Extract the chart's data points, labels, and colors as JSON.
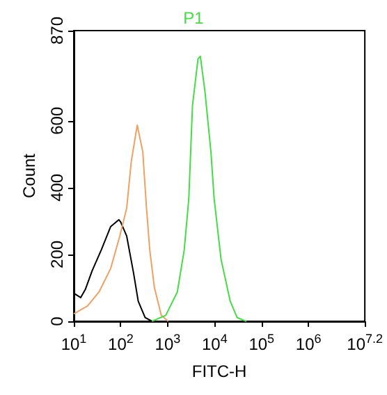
{
  "chart_data": {
    "type": "line",
    "title": "P1",
    "xlabel": "FITC-H",
    "ylabel": "Count",
    "log": "x",
    "grid": false,
    "marker": "none",
    "line_style": "solid",
    "xlim": [
      10,
      15848932
    ],
    "xticks": [
      {
        "value": 10,
        "label": "10$^{1}$"
      },
      {
        "value": 100,
        "label": "10$^{2}$"
      },
      {
        "value": 1000,
        "label": "10$^{3}$"
      },
      {
        "value": 10000,
        "label": "10$^{4}$"
      },
      {
        "value": 100000,
        "label": "10$^{5}$"
      },
      {
        "value": 1000000,
        "label": "10$^{6}$"
      },
      {
        "value": 15848932,
        "label": "10$^{7.2}$"
      }
    ],
    "ylim": [
      0,
      870
    ],
    "yticks": [
      0,
      200,
      400,
      600,
      870
    ],
    "series": [
      {
        "color": "#000000",
        "x": [
          10,
          14,
          17.6,
          24.6,
          38.7,
          60.8,
          91,
          100,
          134,
          188,
          236,
          331,
          464
        ],
        "values": [
          84,
          71,
          95,
          151,
          214,
          283,
          304,
          297,
          255,
          144,
          60,
          11,
          0
        ]
      },
      {
        "color": "#f0a060",
        "x": [
          10,
          19.7,
          34.6,
          61,
          95.5,
          134,
          168,
          225,
          295,
          354,
          415,
          520,
          730,
          1023
        ],
        "values": [
          22,
          46,
          88,
          158,
          255,
          339,
          479,
          587,
          507,
          339,
          214,
          102,
          18,
          0
        ]
      },
      {
        "color": "#44dd44",
        "x": [
          464,
          912,
          1607,
          2255,
          2820,
          3380,
          4436,
          4966,
          6223,
          8350,
          9772,
          13700,
          21500,
          30200,
          47400
        ],
        "values": [
          0,
          18,
          88,
          214,
          367,
          646,
          786,
          793,
          688,
          507,
          367,
          186,
          60,
          11,
          0
        ]
      }
    ]
  }
}
